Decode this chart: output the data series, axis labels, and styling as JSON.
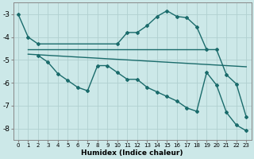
{
  "background_color": "#cce8e8",
  "grid_color": "#b0d0d0",
  "line_color": "#1a6b6b",
  "xlabel": "Humidex (Indice chaleur)",
  "xlim": [
    -0.5,
    23.5
  ],
  "ylim": [
    -8.5,
    -2.5
  ],
  "yticks": [
    -8,
    -7,
    -6,
    -5,
    -4,
    -3
  ],
  "xticks": [
    0,
    1,
    2,
    3,
    4,
    5,
    6,
    7,
    8,
    9,
    10,
    11,
    12,
    13,
    14,
    15,
    16,
    17,
    18,
    19,
    20,
    21,
    22,
    23
  ],
  "series": [
    {
      "x": [
        0,
        1,
        2,
        10,
        11,
        12,
        13,
        14,
        15,
        16,
        17,
        18,
        19,
        20,
        21,
        22,
        23
      ],
      "y": [
        -3.0,
        -4.0,
        -4.3,
        -4.3,
        -3.8,
        -3.8,
        -3.5,
        -3.1,
        -2.85,
        -3.1,
        -3.15,
        -3.55,
        -4.55,
        -4.55,
        -5.65,
        -6.05,
        -7.5
      ],
      "marker": "D",
      "markersize": 2.0,
      "linewidth": 1.0
    },
    {
      "x": [
        1,
        19
      ],
      "y": [
        -4.55,
        -4.55
      ],
      "marker": null,
      "linewidth": 1.0
    },
    {
      "x": [
        1,
        23
      ],
      "y": [
        -4.75,
        -5.3
      ],
      "marker": null,
      "linewidth": 1.0
    },
    {
      "x": [
        2,
        3,
        4,
        5,
        6,
        7,
        8,
        9,
        10,
        11,
        12,
        13,
        14,
        15,
        16,
        17,
        18,
        19,
        20,
        21,
        22,
        23
      ],
      "y": [
        -4.8,
        -5.1,
        -5.6,
        -5.9,
        -6.2,
        -6.35,
        -5.25,
        -5.25,
        -5.55,
        -5.85,
        -5.85,
        -6.2,
        -6.4,
        -6.6,
        -6.8,
        -7.1,
        -7.25,
        -5.55,
        -6.1,
        -7.3,
        -7.85,
        -8.1
      ],
      "marker": "D",
      "markersize": 2.0,
      "linewidth": 1.0
    }
  ]
}
